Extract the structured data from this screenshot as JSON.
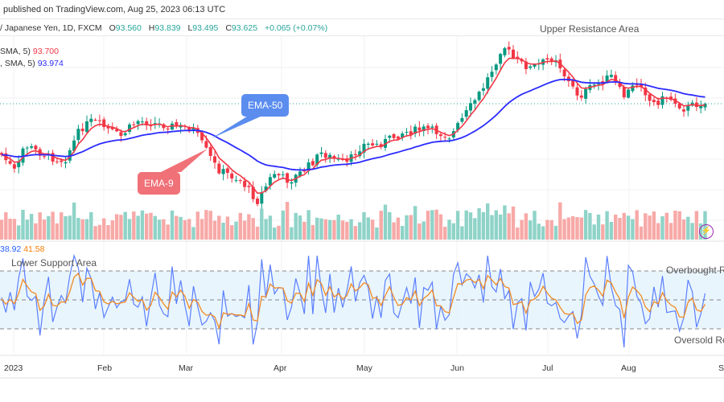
{
  "header": {
    "published": "published on TradingView.com, Aug 25, 2023 06:13 UTC"
  },
  "symbol": {
    "name": "/ Japanese Yen, 1D, FXCM",
    "open_label": "O",
    "open": "93.560",
    "high_label": "H",
    "high": "93.839",
    "low_label": "L",
    "low": "93.495",
    "close_label": "C",
    "close": "93.625",
    "change": "+0.065 (+0.07%)"
  },
  "indicators": [
    {
      "label": "SMA, 5)",
      "value": "93.700",
      "color": "#f23645"
    },
    {
      "label": ", SMA, 5)",
      "value": "93.974",
      "color": "#2b2bff"
    }
  ],
  "annotations": {
    "upper": "Upper Resistance Area",
    "lower": "Lower Support Area",
    "overbought": "Overbought R",
    "oversold": "Oversold Re",
    "ema50": "EMA-50",
    "ema9": "EMA-9"
  },
  "rsi": {
    "value1": "38.92",
    "value1_color": "#2962ff",
    "value2": "41.58",
    "value2_color": "#f57c00"
  },
  "time_axis": [
    "2023",
    "Feb",
    "Mar",
    "Apr",
    "May",
    "Jun",
    "Jul",
    "Aug",
    "S"
  ],
  "colors": {
    "up": "#089981",
    "down": "#f23645",
    "ema9": "#f23645",
    "ema50": "#2b2bff",
    "rsi": "#5b7fff",
    "rsi_ma": "#f08a24"
  }
}
